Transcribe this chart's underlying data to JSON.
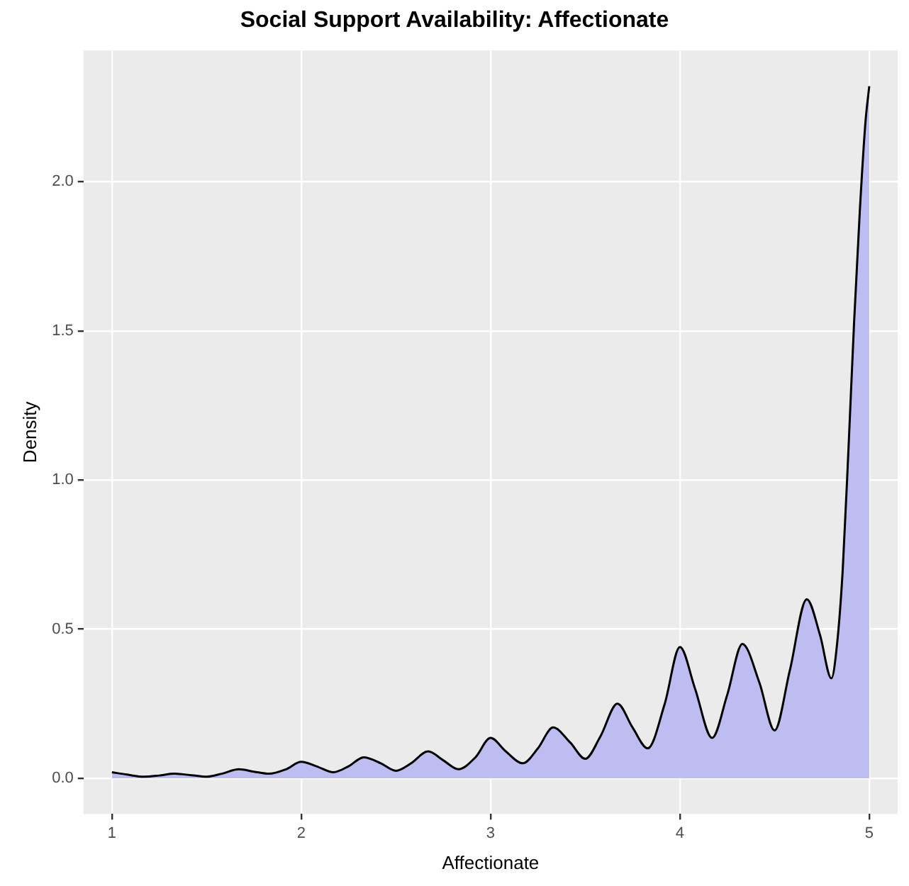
{
  "chart_data": {
    "type": "area",
    "title": "Social Support Availability: Affectionate",
    "xlabel": "Affectionate",
    "ylabel": "Density",
    "series": [
      {
        "color": "#bdbdf2",
        "x": [
          1,
          1.08,
          1.17,
          1.25,
          1.33,
          1.42,
          1.5,
          1.58,
          1.67,
          1.75,
          1.83,
          1.92,
          2,
          2.08,
          2.17,
          2.25,
          2.33,
          2.42,
          2.5,
          2.58,
          2.67,
          2.75,
          2.83,
          2.92,
          3,
          3.08,
          3.17,
          3.25,
          3.33,
          3.42,
          3.5,
          3.58,
          3.67,
          3.75,
          3.83,
          3.92,
          4,
          4.08,
          4.17,
          4.25,
          4.33,
          4.42,
          4.5,
          4.58,
          4.67,
          4.74,
          4.8,
          4.83,
          4.86,
          4.89,
          4.92,
          4.95,
          4.98,
          5
        ],
        "values": [
          0.02,
          0.012,
          0.005,
          0.009,
          0.015,
          0.01,
          0.005,
          0.015,
          0.03,
          0.022,
          0.015,
          0.03,
          0.055,
          0.04,
          0.02,
          0.04,
          0.07,
          0.05,
          0.025,
          0.05,
          0.09,
          0.06,
          0.03,
          0.07,
          0.135,
          0.09,
          0.05,
          0.1,
          0.17,
          0.12,
          0.065,
          0.14,
          0.25,
          0.17,
          0.1,
          0.25,
          0.44,
          0.3,
          0.135,
          0.28,
          0.45,
          0.32,
          0.16,
          0.36,
          0.6,
          0.48,
          0.335,
          0.45,
          0.7,
          1.1,
          1.53,
          1.9,
          2.2,
          2.32
        ]
      }
    ],
    "xlim": [
      0.85,
      5.15
    ],
    "ylim": [
      -0.12,
      2.44
    ],
    "xticks": [
      1,
      2,
      3,
      4,
      5
    ],
    "yticks": [
      {
        "value": 0,
        "label": "0.0"
      },
      {
        "value": 0.5,
        "label": "0.5"
      },
      {
        "value": 1,
        "label": "1.0"
      },
      {
        "value": 1.5,
        "label": "1.5"
      },
      {
        "value": 2,
        "label": "2.0"
      }
    ],
    "grid": true,
    "legend": false
  }
}
